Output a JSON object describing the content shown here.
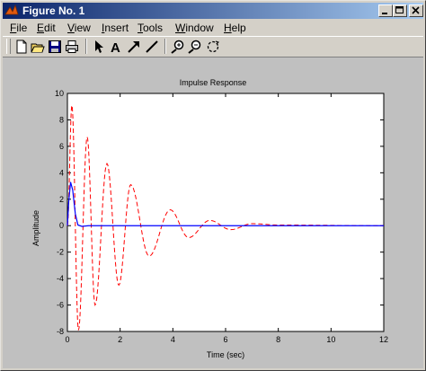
{
  "window": {
    "title": "Figure No. 1",
    "controls": [
      "minimize",
      "maximize",
      "close"
    ]
  },
  "menubar": {
    "items": [
      {
        "label": "ile",
        "mnemonic": "F"
      },
      {
        "label": "dit",
        "mnemonic": "E"
      },
      {
        "label": "iew",
        "mnemonic": "V"
      },
      {
        "label": "nsert",
        "mnemonic": "I"
      },
      {
        "label": "ools",
        "mnemonic": "T"
      },
      {
        "label": "indow",
        "mnemonic": "W"
      },
      {
        "label": "elp",
        "mnemonic": "H"
      }
    ]
  },
  "toolbar": {
    "tools": [
      "new-file-icon",
      "open-folder-icon",
      "save-icon",
      "print-icon",
      "select-arrow-icon",
      "insert-text-icon",
      "insert-arrow-icon",
      "insert-line-icon",
      "zoom-in-icon",
      "zoom-out-icon",
      "rotate-3d-icon"
    ]
  },
  "colors": {
    "accent_title": "#0a246a",
    "series_red": "#ff0000",
    "series_blue": "#0000ff"
  },
  "chart_data": {
    "type": "line",
    "title": "Impulse Response",
    "xlabel": "Time (sec)",
    "ylabel": "Amplitude",
    "xlim": [
      0,
      12
    ],
    "ylim": [
      -8,
      10
    ],
    "xticks": [
      "0",
      "2",
      "4",
      "6",
      "8",
      "10",
      "12"
    ],
    "yticks": [
      "10",
      "8",
      "6",
      "4",
      "2",
      "0",
      "-2",
      "-4",
      "-6",
      "-8"
    ],
    "grid": false,
    "series": [
      {
        "style": "dashed",
        "color": "#ff0000",
        "peaks": [
          {
            "t": 0.17,
            "y": 9.1
          },
          {
            "t": 0.42,
            "y": -7.9
          },
          {
            "t": 0.75,
            "y": 6.7
          },
          {
            "t": 1.05,
            "y": -6.0
          },
          {
            "t": 1.5,
            "y": 4.7
          },
          {
            "t": 1.95,
            "y": -4.5
          },
          {
            "t": 2.4,
            "y": 3.1
          },
          {
            "t": 3.1,
            "y": -2.3
          },
          {
            "t": 3.9,
            "y": 1.2
          },
          {
            "t": 4.6,
            "y": -0.9
          },
          {
            "t": 5.4,
            "y": 0.4
          },
          {
            "t": 6.2,
            "y": -0.3
          },
          {
            "t": 7.0,
            "y": 0.15
          },
          {
            "t": 8.0,
            "y": 0.05
          },
          {
            "t": 12.0,
            "y": 0.0
          }
        ]
      },
      {
        "style": "solid",
        "color": "#0000ff",
        "points": [
          {
            "t": 0.0,
            "y": 0.0
          },
          {
            "t": 0.05,
            "y": 1.8
          },
          {
            "t": 0.12,
            "y": 3.3
          },
          {
            "t": 0.2,
            "y": 2.7
          },
          {
            "t": 0.3,
            "y": 0.9
          },
          {
            "t": 0.4,
            "y": 0.05
          },
          {
            "t": 0.55,
            "y": -0.05
          },
          {
            "t": 0.8,
            "y": 0.0
          },
          {
            "t": 12.0,
            "y": 0.0
          }
        ]
      }
    ]
  }
}
